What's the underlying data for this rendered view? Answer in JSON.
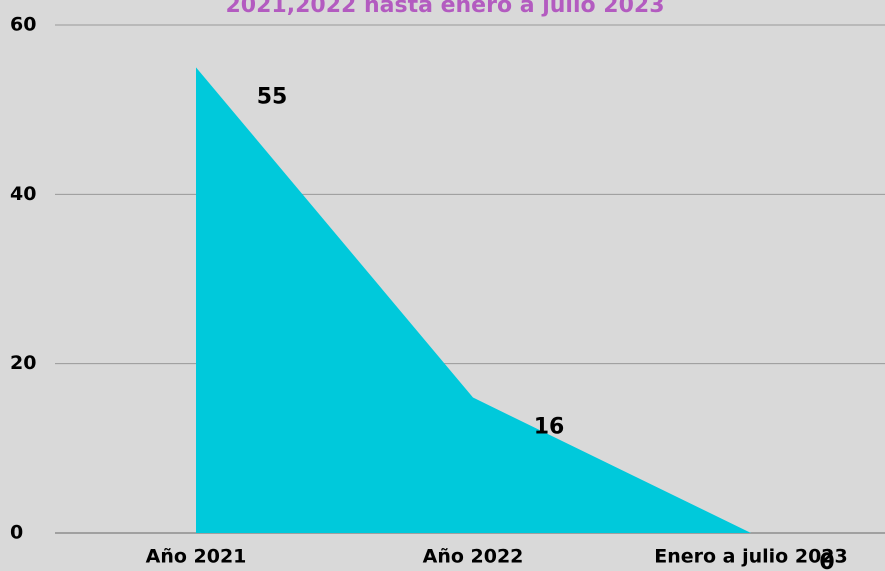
{
  "chart_data": {
    "type": "area",
    "title": "2021,2022 hasta enero a julio 2023",
    "categories": [
      "Año 2021",
      "Año 2022",
      "Enero a julio 2023"
    ],
    "values": [
      55,
      16,
      0
    ],
    "color": "#00c9db",
    "ylim": [
      0,
      60
    ],
    "yticks": [
      0,
      20,
      40,
      60
    ],
    "grid": true
  }
}
